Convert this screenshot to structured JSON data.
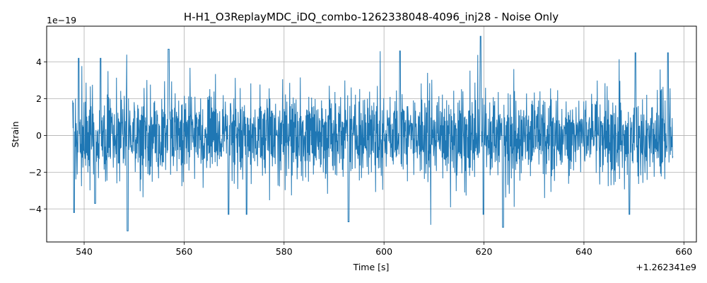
{
  "chart_data": {
    "type": "line",
    "title": "H-H1_O3ReplayMDC_iDQ_combo-1262338048-4096_inj28 - Noise Only",
    "xlabel": "Time [s]",
    "ylabel": "Strain",
    "x_offset_label": "+1.262341e9",
    "y_scale_label": "1e−19",
    "xlim": [
      532.5,
      662.5
    ],
    "ylim": [
      -5.8,
      5.95
    ],
    "x_ticks": [
      540,
      560,
      580,
      600,
      620,
      640,
      660
    ],
    "x_tick_labels": [
      "540",
      "560",
      "580",
      "600",
      "620",
      "640",
      "660"
    ],
    "y_ticks": [
      -4,
      -2,
      0,
      2,
      4
    ],
    "y_tick_labels": [
      "−4",
      "−2",
      "0",
      "2",
      "4"
    ],
    "grid": true,
    "series": [
      {
        "color": "#1f77b4",
        "x_start": 537.7,
        "x_end": 657.8,
        "typical_amplitude": 2.1,
        "peaks": [
          {
            "x": 538.0,
            "y": -4.2
          },
          {
            "x": 538.9,
            "y": 4.2
          },
          {
            "x": 542.2,
            "y": -3.7
          },
          {
            "x": 543.3,
            "y": 4.2
          },
          {
            "x": 548.6,
            "y": 4.4
          },
          {
            "x": 548.7,
            "y": -5.2
          },
          {
            "x": 556.9,
            "y": 4.7
          },
          {
            "x": 568.9,
            "y": -4.3
          },
          {
            "x": 572.5,
            "y": -4.3
          },
          {
            "x": 592.9,
            "y": -4.7
          },
          {
            "x": 603.2,
            "y": 4.6
          },
          {
            "x": 619.3,
            "y": 5.4
          },
          {
            "x": 619.9,
            "y": -4.3
          },
          {
            "x": 623.8,
            "y": -5.0
          },
          {
            "x": 649.1,
            "y": -4.3
          },
          {
            "x": 650.3,
            "y": 4.5
          },
          {
            "x": 656.8,
            "y": 4.5
          }
        ]
      }
    ]
  }
}
